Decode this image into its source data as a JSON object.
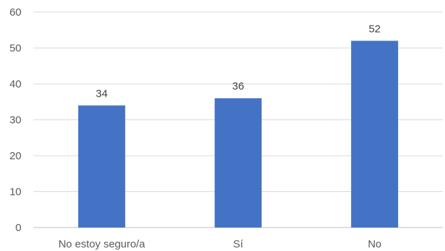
{
  "chart_data": {
    "type": "bar",
    "categories": [
      "No estoy seguro/a",
      "Sí",
      "No"
    ],
    "values": [
      34,
      36,
      52
    ],
    "data_labels": [
      "34",
      "36",
      "52"
    ],
    "title": "",
    "xlabel": "",
    "ylabel": "",
    "ylim": [
      0,
      60
    ],
    "yticks": [
      0,
      10,
      20,
      30,
      40,
      50,
      60
    ],
    "ytick_labels": [
      "0",
      "10",
      "20",
      "30",
      "40",
      "50",
      "60"
    ],
    "grid": true,
    "legend": "none",
    "colors": {
      "bar": "#4472C4",
      "grid": "#D9D9D9",
      "axis": "#BFBFBF",
      "tick_text": "#595959",
      "data_label_text": "#404040"
    }
  }
}
